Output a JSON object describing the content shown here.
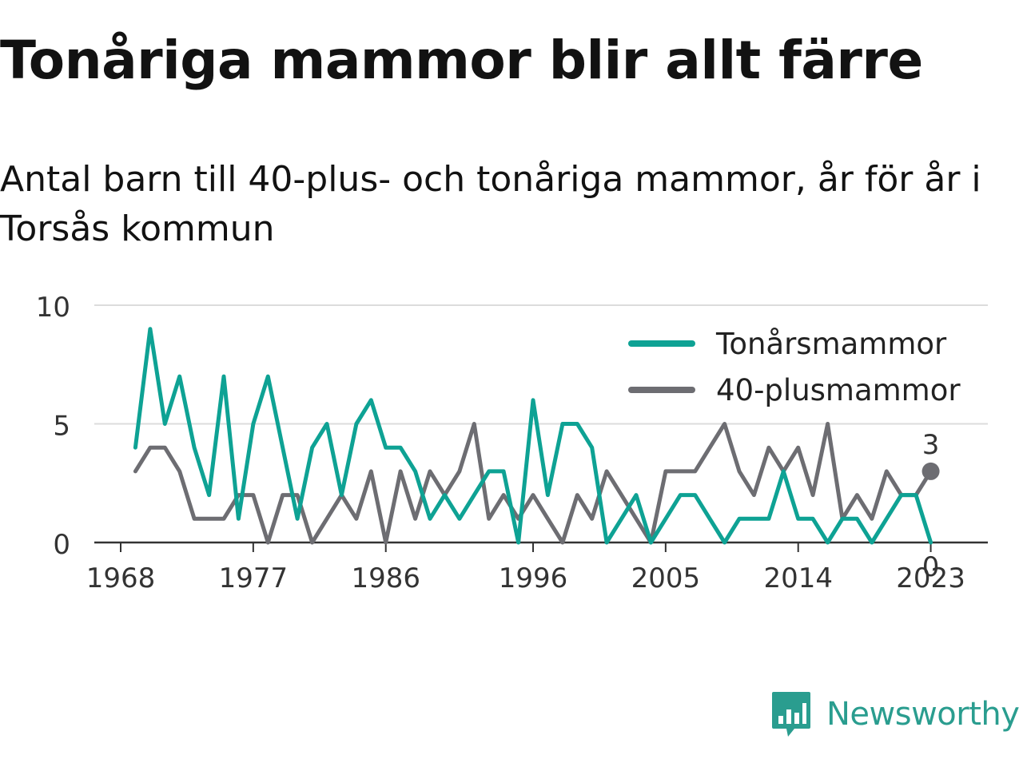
{
  "header": {
    "title": "Tonåriga mammor blir allt färre",
    "subtitle": "Antal barn till 40-plus- och tonåriga mammor, år för år i Torsås kommun"
  },
  "brand": {
    "name": "Newsworthy",
    "icon": "newsworthy-logo-icon",
    "color": "#2a9d8f"
  },
  "chart_data": {
    "type": "line",
    "title": "Tonåriga mammor blir allt färre",
    "subtitle": "Antal barn till 40-plus- och tonåriga mammor, år för år i Torsås kommun",
    "x_ticks": [
      1968,
      1977,
      1986,
      1996,
      2005,
      2014,
      2023
    ],
    "y_ticks": [
      0,
      5,
      10
    ],
    "xlim": [
      1967,
      2028
    ],
    "ylim": [
      0,
      10
    ],
    "grid": true,
    "legend_position": "top-right",
    "x": [
      1969,
      1970,
      1971,
      1972,
      1973,
      1974,
      1975,
      1976,
      1977,
      1978,
      1979,
      1980,
      1981,
      1982,
      1983,
      1984,
      1985,
      1986,
      1987,
      1988,
      1989,
      1990,
      1991,
      1992,
      1993,
      1994,
      1995,
      1996,
      1997,
      1998,
      1999,
      2000,
      2001,
      2002,
      2003,
      2004,
      2005,
      2006,
      2007,
      2008,
      2009,
      2010,
      2011,
      2012,
      2013,
      2014,
      2015,
      2016,
      2017,
      2018,
      2019,
      2020,
      2021,
      2022,
      2023
    ],
    "series": [
      {
        "name": "Tonårsmammor",
        "color": "#0ea294",
        "values": [
          4,
          9,
          5,
          7,
          4,
          2,
          7,
          1,
          5,
          7,
          4,
          1,
          4,
          5,
          2,
          5,
          6,
          4,
          4,
          3,
          1,
          2,
          1,
          2,
          3,
          3,
          0,
          6,
          2,
          5,
          5,
          4,
          0,
          1,
          2,
          0,
          1,
          2,
          2,
          1,
          0,
          1,
          1,
          1,
          3,
          1,
          1,
          0,
          1,
          1,
          0,
          1,
          2,
          2,
          0
        ],
        "end_label": "0"
      },
      {
        "name": "40-plusmammor",
        "color": "#6d6d72",
        "values": [
          3,
          4,
          4,
          3,
          1,
          1,
          1,
          2,
          2,
          0,
          2,
          2,
          0,
          1,
          2,
          1,
          3,
          0,
          3,
          1,
          3,
          2,
          3,
          5,
          1,
          2,
          1,
          2,
          1,
          0,
          2,
          1,
          3,
          2,
          1,
          0,
          3,
          3,
          3,
          4,
          5,
          3,
          2,
          4,
          3,
          4,
          2,
          5,
          1,
          2,
          1,
          3,
          2,
          2,
          3
        ],
        "end_label": "3"
      }
    ]
  }
}
